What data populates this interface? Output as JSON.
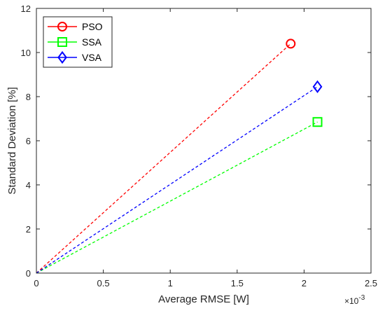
{
  "chart_data": {
    "type": "line",
    "title": "",
    "xlabel": "Average RMSE [W]",
    "ylabel": "Standard Deviation [%]",
    "x_multiplier_label": "×10",
    "x_multiplier_exponent": "-3",
    "xlim": [
      0,
      2.5
    ],
    "ylim": [
      0,
      12
    ],
    "x_ticks": [
      "0",
      "0.5",
      "1",
      "1.5",
      "2",
      "2.5"
    ],
    "y_ticks": [
      "0",
      "2",
      "4",
      "6",
      "8",
      "10",
      "12"
    ],
    "grid": false,
    "legend_position": "top-left",
    "series": [
      {
        "name": "PSO",
        "color": "#ff0000",
        "marker": "circle",
        "line_style": "dashed",
        "points": [
          [
            0,
            0
          ],
          [
            1.9,
            10.4
          ]
        ]
      },
      {
        "name": "SSA",
        "color": "#00ff00",
        "marker": "square",
        "line_style": "dashed",
        "points": [
          [
            0,
            0
          ],
          [
            2.1,
            6.85
          ]
        ]
      },
      {
        "name": "VSA",
        "color": "#0000ff",
        "marker": "diamond",
        "line_style": "dashed",
        "points": [
          [
            0,
            0
          ],
          [
            2.1,
            8.45
          ]
        ]
      }
    ]
  }
}
